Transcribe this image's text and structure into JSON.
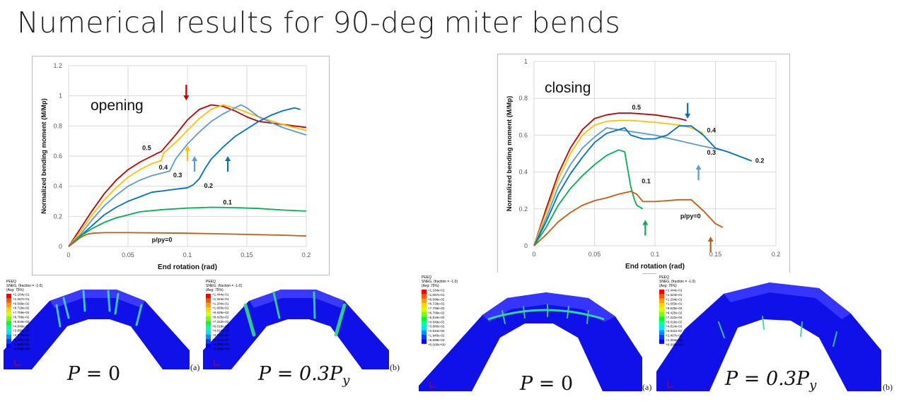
{
  "slide_title": "Numerical results for 90-deg miter bends",
  "colors": {
    "0.5": "#c00000",
    "0.4": "#ffc000",
    "0.3": "#5b9bd5",
    "0.2": "#0070c0",
    "0.1": "#00b050",
    "0": "#c55a11",
    "grid": "#d9d9d9",
    "fem_blue": "#1010e8"
  },
  "chart_data": [
    {
      "type": "line",
      "annotation": "opening",
      "xlabel": "End rotation (rad)",
      "ylabel": "Normalized bending moment (M/Mp)",
      "xlim": [
        0,
        0.2
      ],
      "ylim": [
        0,
        1.2
      ],
      "xticks": [
        "0",
        "0.05",
        "0.1",
        "0.15",
        "0.2"
      ],
      "yticks": [
        "0",
        "0.2",
        "0.4",
        "0.6",
        "0.8",
        "1",
        "1.2"
      ],
      "grid": true,
      "series": [
        {
          "name": "0.5",
          "key": "0.5",
          "x": [
            0,
            0.01,
            0.02,
            0.03,
            0.04,
            0.05,
            0.06,
            0.07,
            0.075,
            0.078,
            0.09,
            0.1,
            0.11,
            0.12,
            0.13,
            0.14,
            0.15,
            0.16,
            0.18,
            0.2
          ],
          "y": [
            0,
            0.12,
            0.24,
            0.35,
            0.44,
            0.51,
            0.56,
            0.6,
            0.62,
            0.63,
            0.74,
            0.84,
            0.91,
            0.94,
            0.93,
            0.9,
            0.86,
            0.83,
            0.81,
            0.79
          ]
        },
        {
          "name": "0.4",
          "key": "0.4",
          "x": [
            0,
            0.01,
            0.02,
            0.03,
            0.04,
            0.05,
            0.06,
            0.07,
            0.078,
            0.08,
            0.09,
            0.1,
            0.11,
            0.12,
            0.13,
            0.14,
            0.16,
            0.18,
            0.2
          ],
          "y": [
            0,
            0.1,
            0.21,
            0.31,
            0.39,
            0.46,
            0.51,
            0.55,
            0.57,
            0.62,
            0.69,
            0.77,
            0.85,
            0.91,
            0.94,
            0.92,
            0.86,
            0.81,
            0.77
          ]
        },
        {
          "name": "0.3",
          "key": "0.3",
          "x": [
            0,
            0.01,
            0.02,
            0.03,
            0.04,
            0.05,
            0.06,
            0.07,
            0.08,
            0.085,
            0.09,
            0.1,
            0.11,
            0.12,
            0.13,
            0.14,
            0.145,
            0.15,
            0.16,
            0.18,
            0.2
          ],
          "y": [
            0,
            0.08,
            0.18,
            0.27,
            0.34,
            0.4,
            0.44,
            0.47,
            0.49,
            0.5,
            0.58,
            0.68,
            0.76,
            0.83,
            0.88,
            0.92,
            0.94,
            0.92,
            0.86,
            0.79,
            0.74
          ]
        },
        {
          "name": "0.2",
          "key": "0.2",
          "x": [
            0,
            0.01,
            0.02,
            0.03,
            0.04,
            0.05,
            0.06,
            0.07,
            0.08,
            0.09,
            0.1,
            0.105,
            0.11,
            0.115,
            0.12,
            0.13,
            0.14,
            0.15,
            0.16,
            0.17,
            0.18,
            0.19,
            0.195
          ],
          "y": [
            0,
            0.07,
            0.14,
            0.21,
            0.26,
            0.3,
            0.33,
            0.36,
            0.37,
            0.38,
            0.39,
            0.41,
            0.45,
            0.52,
            0.58,
            0.66,
            0.73,
            0.78,
            0.83,
            0.87,
            0.9,
            0.92,
            0.91
          ]
        },
        {
          "name": "0.1",
          "key": "0.1",
          "x": [
            0,
            0.01,
            0.02,
            0.03,
            0.04,
            0.05,
            0.06,
            0.08,
            0.1,
            0.12,
            0.14,
            0.16,
            0.18,
            0.2
          ],
          "y": [
            0,
            0.07,
            0.12,
            0.16,
            0.19,
            0.21,
            0.23,
            0.245,
            0.255,
            0.26,
            0.258,
            0.252,
            0.242,
            0.235
          ]
        },
        {
          "name": "p/py=0",
          "key": "0",
          "x": [
            0,
            0.005,
            0.01,
            0.015,
            0.02,
            0.03,
            0.05,
            0.08,
            0.1,
            0.12,
            0.15,
            0.18,
            0.2
          ],
          "y": [
            0,
            0.03,
            0.06,
            0.08,
            0.088,
            0.092,
            0.092,
            0.09,
            0.088,
            0.085,
            0.08,
            0.075,
            0.07
          ]
        }
      ],
      "labels": [
        {
          "text": "0.5",
          "x": 0.062,
          "y": 0.64
        },
        {
          "text": "0.4",
          "x": 0.076,
          "y": 0.51
        },
        {
          "text": "0.3",
          "x": 0.088,
          "y": 0.46
        },
        {
          "text": "0.2",
          "x": 0.114,
          "y": 0.39
        },
        {
          "text": "0.1",
          "x": 0.13,
          "y": 0.28
        },
        {
          "text": "p/py=0",
          "x": 0.07,
          "y": 0.03
        }
      ],
      "arrows": [
        {
          "key": "0.5",
          "x": 0.099,
          "y": 0.97,
          "dir": "down"
        },
        {
          "key": "0.4",
          "x": 0.1,
          "y": 0.67,
          "dir": "up"
        },
        {
          "key": "0.3",
          "x": 0.106,
          "y": 0.6,
          "dir": "up"
        },
        {
          "key": "0.2",
          "x": 0.134,
          "y": 0.6,
          "dir": "up"
        }
      ]
    },
    {
      "type": "line",
      "annotation": "closing",
      "xlabel": "End rotation (rad)",
      "ylabel": "Normalized bending moment (M/Mp)",
      "xlim": [
        0,
        0.2
      ],
      "ylim": [
        0,
        1
      ],
      "xticks": [
        "0",
        "0.05",
        "0.1",
        "0.15",
        "0.2"
      ],
      "yticks": [
        "0",
        "0.2",
        "0.4",
        "0.6",
        "0.8",
        "1"
      ],
      "grid": true,
      "series": [
        {
          "name": "0.5",
          "key": "0.5",
          "x": [
            0,
            0.01,
            0.02,
            0.03,
            0.04,
            0.05,
            0.06,
            0.07,
            0.08,
            0.1,
            0.12,
            0.126
          ],
          "y": [
            0,
            0.2,
            0.39,
            0.53,
            0.63,
            0.69,
            0.71,
            0.72,
            0.72,
            0.71,
            0.69,
            0.68
          ]
        },
        {
          "name": "0.4",
          "key": "0.4",
          "x": [
            0,
            0.01,
            0.02,
            0.03,
            0.04,
            0.05,
            0.06,
            0.07,
            0.08,
            0.1,
            0.12,
            0.13,
            0.14
          ],
          "y": [
            0,
            0.18,
            0.36,
            0.5,
            0.6,
            0.655,
            0.675,
            0.68,
            0.68,
            0.67,
            0.655,
            0.64,
            0.61
          ]
        },
        {
          "name": "0.3",
          "key": "0.3",
          "x": [
            0,
            0.01,
            0.02,
            0.03,
            0.04,
            0.05,
            0.06,
            0.07,
            0.08,
            0.1,
            0.12,
            0.14,
            0.155
          ],
          "y": [
            0,
            0.15,
            0.32,
            0.44,
            0.53,
            0.59,
            0.64,
            0.63,
            0.62,
            0.6,
            0.57,
            0.54,
            0.52
          ]
        },
        {
          "name": "0.2",
          "key": "0.2",
          "x": [
            0,
            0.01,
            0.02,
            0.03,
            0.04,
            0.05,
            0.06,
            0.07,
            0.075,
            0.08,
            0.09,
            0.1,
            0.11,
            0.12,
            0.13,
            0.14,
            0.15,
            0.16,
            0.18
          ],
          "y": [
            0,
            0.13,
            0.28,
            0.39,
            0.48,
            0.56,
            0.61,
            0.63,
            0.64,
            0.6,
            0.58,
            0.58,
            0.6,
            0.65,
            0.65,
            0.6,
            0.53,
            0.51,
            0.46
          ]
        },
        {
          "name": "0.1",
          "key": "0.1",
          "x": [
            0,
            0.01,
            0.02,
            0.03,
            0.04,
            0.05,
            0.06,
            0.07,
            0.075,
            0.08,
            0.083,
            0.085,
            0.09
          ],
          "y": [
            0,
            0.1,
            0.22,
            0.31,
            0.38,
            0.44,
            0.49,
            0.52,
            0.51,
            0.32,
            0.25,
            0.22,
            0.2
          ]
        },
        {
          "name": "p/py=0",
          "key": "0",
          "x": [
            0,
            0.01,
            0.02,
            0.03,
            0.04,
            0.05,
            0.06,
            0.07,
            0.08,
            0.085,
            0.09,
            0.1,
            0.11,
            0.12,
            0.13,
            0.14,
            0.15,
            0.156
          ],
          "y": [
            0,
            0.06,
            0.13,
            0.18,
            0.22,
            0.245,
            0.26,
            0.28,
            0.295,
            0.28,
            0.24,
            0.24,
            0.245,
            0.25,
            0.25,
            0.19,
            0.12,
            0.1
          ]
        }
      ],
      "labels": [
        {
          "text": "0.5",
          "x": 0.081,
          "y": 0.74
        },
        {
          "text": "0.4",
          "x": 0.143,
          "y": 0.615
        },
        {
          "text": "0.3",
          "x": 0.143,
          "y": 0.495
        },
        {
          "text": "0.2",
          "x": 0.183,
          "y": 0.45
        },
        {
          "text": "0.1",
          "x": 0.089,
          "y": 0.34
        },
        {
          "text": "p/py=0",
          "x": 0.121,
          "y": 0.15
        }
      ],
      "arrows": [
        {
          "key": "0.2",
          "x": 0.127,
          "y": 0.69,
          "dir": "down"
        },
        {
          "key": "0.3",
          "x": 0.136,
          "y": 0.44,
          "dir": "up"
        },
        {
          "key": "0.1",
          "x": 0.092,
          "y": 0.14,
          "dir": "up"
        },
        {
          "key": "0",
          "x": 0.146,
          "y": 0.05,
          "dir": "up"
        }
      ]
    }
  ],
  "fem_panels": [
    {
      "legend_title": "PEEQ",
      "legend_sub": "SNEG, (fraction = -1.0)",
      "legend_avg": "(Avg: 75%)",
      "equation_lhs": "P",
      "equation_rhs": "0",
      "tag": "(a)",
      "legend_values": [
        "+1.164e-01",
        "+1.067e-01",
        "+9.699e-02",
        "+8.729e-02",
        "+7.759e-02",
        "+6.789e-02",
        "+5.819e-02",
        "+4.849e-02",
        "+3.880e-02",
        "+2.910e-02",
        "+1.940e-02",
        "+9.699e-03",
        "+0.000e+00"
      ]
    },
    {
      "legend_title": "PEEQ",
      "legend_sub": "SNEG, (fraction = -1.0)",
      "legend_avg": "(Avg: 75%)",
      "equation_lhs": "P",
      "equation_rhs": "0.3P",
      "equation_sub": "y",
      "tag": "(b)",
      "legend_values": [
        "+1.444e-01",
        "+1.324e-01",
        "+1.204e-01",
        "+1.083e-01",
        "+9.629e-02",
        "+8.425e-02",
        "+7.222e-02",
        "+6.018e-02",
        "+4.814e-02",
        "+3.611e-02",
        "+2.407e-02",
        "+1.204e-02",
        "+0.000e+00"
      ]
    }
  ]
}
